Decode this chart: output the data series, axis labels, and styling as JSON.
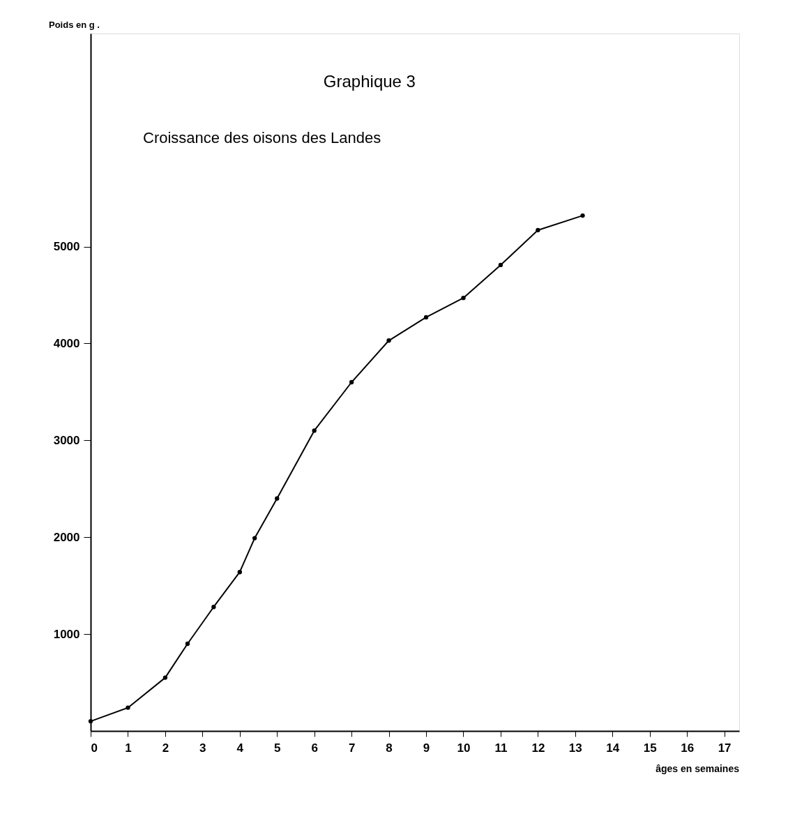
{
  "chart_data": {
    "type": "line",
    "title": "Graphique 3",
    "subtitle": "Croissance des oisons des Landes",
    "xlabel": "âges en semaines",
    "ylabel": "Poids en g .",
    "x": [
      0,
      1,
      2,
      2.6,
      3.3,
      4,
      4.4,
      5,
      6,
      7,
      8,
      9,
      10,
      11,
      12,
      13.2
    ],
    "series": [
      {
        "color": "#000000",
        "values": [
          100,
          240,
          550,
          900,
          1280,
          1640,
          1990,
          2400,
          3100,
          3600,
          4030,
          4270,
          4470,
          4810,
          5170,
          5320
        ]
      }
    ],
    "xlim": [
      0,
      17.4
    ],
    "xticks": [
      0,
      1,
      2,
      3,
      4,
      5,
      6,
      7,
      8,
      9,
      10,
      11,
      12,
      13,
      14,
      15,
      16,
      17
    ],
    "ylim": [
      0,
      7200
    ],
    "yticks": [
      1000,
      2000,
      3000,
      4000,
      5000
    ],
    "grid": false,
    "marker": "circle",
    "line_style": "solid"
  }
}
